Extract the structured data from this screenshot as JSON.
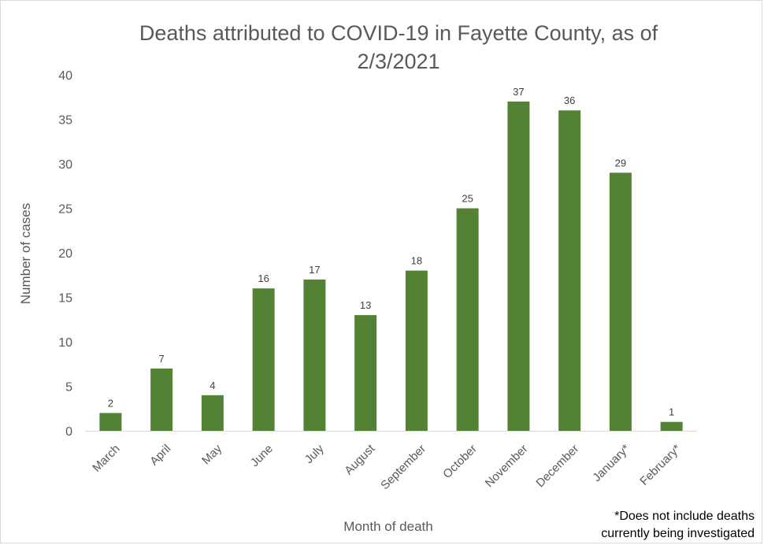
{
  "chart_data": {
    "type": "bar",
    "title_lines": [
      "Deaths attributed to COVID-19 in Fayette County, as of",
      "2/3/2021"
    ],
    "xlabel": "Month of death",
    "ylabel": "Number of cases",
    "categories": [
      "March",
      "April",
      "May",
      "June",
      "July",
      "August",
      "September",
      "October",
      "November",
      "December",
      "January*",
      "February*"
    ],
    "values": [
      2,
      7,
      4,
      16,
      17,
      13,
      18,
      25,
      37,
      36,
      29,
      1
    ],
    "data_labels": [
      "2",
      "7",
      "4",
      "16",
      "17",
      "13",
      "18",
      "25",
      "37",
      "36",
      "29",
      "1"
    ],
    "ylim": [
      0,
      40
    ],
    "yticks": [
      "0",
      "5",
      "10",
      "15",
      "20",
      "25",
      "30",
      "35",
      "40"
    ],
    "grid": false,
    "bar_color": "#548235",
    "footnote_lines": [
      "*Does not include deaths",
      "currently being investigated"
    ]
  }
}
